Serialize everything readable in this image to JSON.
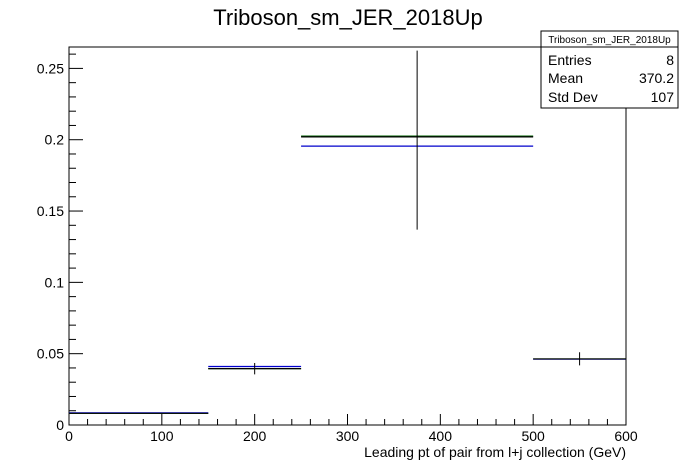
{
  "chart_data": {
    "type": "histogram",
    "title": "Triboson_sm_JER_2018Up",
    "xlabel": "Leading pt of pair from l+j collection (GeV)",
    "ylabel": "",
    "xlim": [
      0,
      600
    ],
    "ylim": [
      0,
      0.265
    ],
    "x_ticks": [
      0,
      100,
      200,
      300,
      400,
      500,
      600
    ],
    "x_tick_labels": [
      "0",
      "100",
      "200",
      "300",
      "400",
      "500",
      "600"
    ],
    "y_ticks": [
      0,
      0.05,
      0.1,
      0.15,
      0.2,
      0.25
    ],
    "y_tick_labels": [
      "0",
      "0.05",
      "0.1",
      "0.15",
      "0.2",
      "0.25"
    ],
    "bins": [
      {
        "x_low": 0,
        "x_high": 150,
        "value": 0.0082,
        "error_low": 0.0082,
        "error_high": 0.0082
      },
      {
        "x_low": 150,
        "x_high": 250,
        "value": 0.0395,
        "error_low": 0.0355,
        "error_high": 0.0435
      },
      {
        "x_low": 250,
        "x_high": 500,
        "value": 0.202,
        "error_low": 0.137,
        "error_high": 0.2625
      },
      {
        "x_low": 500,
        "x_high": 600,
        "value": 0.0463,
        "error_low": 0.0418,
        "error_high": 0.051
      }
    ],
    "series": [
      {
        "color": "#006400",
        "values": [
          0.0082,
          0.0395,
          0.2025,
          0.0463
        ]
      },
      {
        "color": "#0000cc",
        "values": [
          0.0085,
          0.041,
          0.1955,
          0.0462
        ]
      },
      {
        "color": "#000000",
        "values": [
          0.0082,
          0.0395,
          0.202,
          0.0463
        ]
      }
    ],
    "stats_box": {
      "title": "Triboson_sm_JER_2018Up",
      "rows": [
        {
          "label": "Entries",
          "value": "8"
        },
        {
          "label": "Mean",
          "value": "370.2"
        },
        {
          "label": "Std Dev",
          "value": "107"
        }
      ]
    }
  }
}
